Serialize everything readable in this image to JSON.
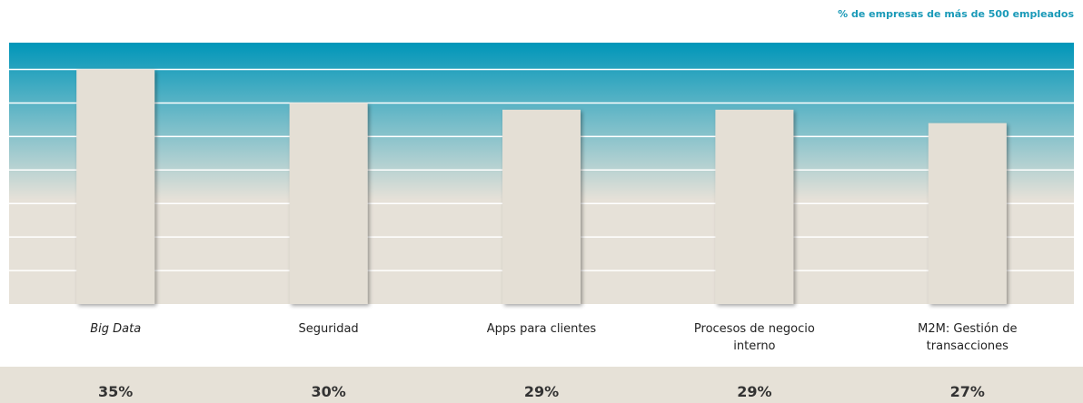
{
  "chart_data": {
    "type": "bar",
    "subtitle": "% de empresas de más de 500 empleados",
    "categories": [
      "Big Data",
      "Seguridad",
      "Apps para clientes",
      "Procesos de negocio interno",
      "M2M: Gestión de transacciones"
    ],
    "values": [
      35,
      30,
      29,
      29,
      27
    ],
    "value_labels": [
      "35%",
      "30%",
      "29%",
      "29%",
      "27%"
    ],
    "color": "#e4dfd5",
    "ylim": [
      0,
      39
    ],
    "yticks": [
      5,
      10,
      15,
      20,
      25,
      30,
      35
    ],
    "grid": true
  }
}
